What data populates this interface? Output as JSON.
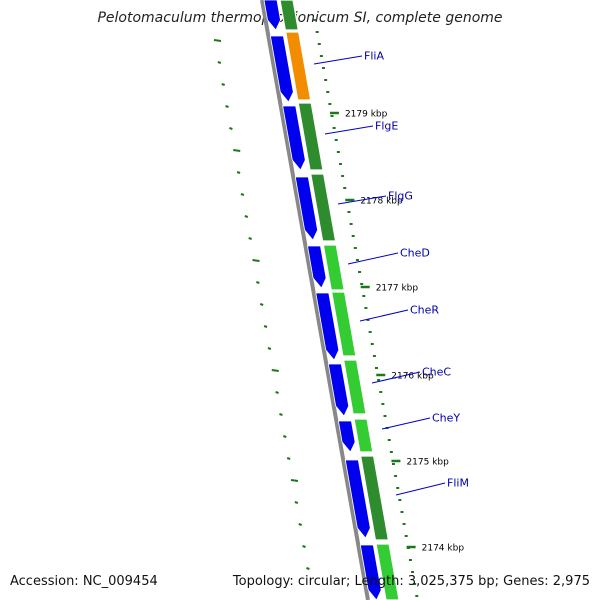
{
  "title": "Pelotomaculum thermopropionicum SI, complete genome",
  "footer": {
    "accession": "Accession: NC_009454",
    "summary": "Topology: circular; Length: 3,025,375 bp; Genes: 2,975"
  },
  "colors": {
    "cds_forward": "#0000ee",
    "gene_orange": "#f28c00",
    "gene_dark_green": "#2e8b2e",
    "gene_light_green": "#33cc33",
    "backbone": "#888888",
    "ticks": "#1a7a1a",
    "labels": "#0000aa",
    "leader_lines": "#0000cc"
  },
  "ticks": [
    {
      "label": "2179 kbp"
    },
    {
      "label": "2178 kbp"
    },
    {
      "label": "2177 kbp"
    },
    {
      "label": "2176 kbp"
    },
    {
      "label": "2175 kbp"
    },
    {
      "label": "2174 kbp"
    }
  ],
  "genes": [
    {
      "name": "FliA"
    },
    {
      "name": "FlgE"
    },
    {
      "name": "FlgG"
    },
    {
      "name": "CheD"
    },
    {
      "name": "CheR"
    },
    {
      "name": "CheC"
    },
    {
      "name": "CheY"
    },
    {
      "name": "FliM"
    }
  ]
}
